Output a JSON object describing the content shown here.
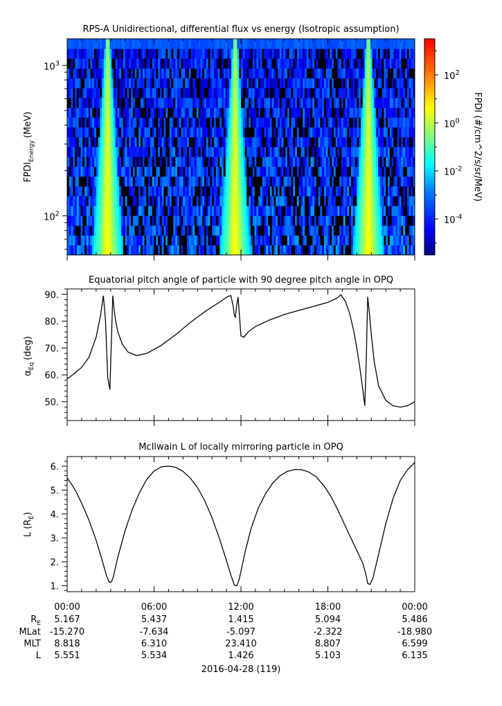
{
  "chart_data": [
    {
      "type": "heatmap",
      "title": "RPS-A Unidirectional, differential flux vs energy (Isotropic assumption)",
      "ylabel_main": "FPDI",
      "ylabel_sub": "Energy",
      "ylabel_unit": "(MeV)",
      "y_scale": "log",
      "ylim": [
        55,
        1500
      ],
      "yticks": [
        {
          "value": 100,
          "base": "10",
          "exp": "2"
        },
        {
          "value": 1000,
          "base": "10",
          "exp": "3"
        }
      ],
      "xlim_hours": [
        0,
        24
      ],
      "colorbar": {
        "label": "FPDI (#/cm^2/s/sr/MeV)",
        "scale": "log",
        "range_exp": [
          -5.5,
          3.5
        ],
        "ticks": [
          {
            "exp": "2",
            "value_exp": 2
          },
          {
            "exp": "0",
            "value_exp": 0
          },
          {
            "exp": "-2",
            "value_exp": -2
          },
          {
            "exp": "-4",
            "value_exp": -4
          }
        ],
        "colormap": [
          "#00007f",
          "#0000ff",
          "#007fff",
          "#00ffff",
          "#7fff7f",
          "#ffff00",
          "#ff7f00",
          "#ff0000"
        ]
      },
      "bright_bands_hours": [
        2.8,
        11.6,
        20.8
      ]
    },
    {
      "type": "line",
      "title": "Equatorial pitch angle of particle with 90 degree pitch angle in OPQ",
      "ylabel": "αEq (deg)",
      "ylim": [
        43,
        92
      ],
      "yticks": [
        50,
        60,
        70,
        80,
        90
      ],
      "x": [
        0,
        0.5,
        1,
        1.5,
        2,
        2.3,
        2.5,
        2.65,
        2.8,
        2.95,
        3.05,
        3.15,
        3.25,
        3.35,
        3.5,
        3.8,
        4.2,
        4.8,
        5.5,
        6.5,
        7.5,
        8.5,
        9.5,
        10.5,
        11.1,
        11.3,
        11.45,
        11.55,
        11.62,
        11.68,
        11.8,
        12.0,
        12.2,
        12.5,
        13.0,
        14.0,
        15.0,
        16.0,
        17.0,
        18.0,
        18.6,
        18.9,
        19.2,
        19.5,
        19.8,
        20.0,
        20.2,
        20.4,
        20.55,
        20.65,
        20.75,
        20.85,
        21.0,
        21.2,
        21.5,
        22.0,
        22.5,
        23.0,
        23.5,
        24.0
      ],
      "y": [
        58.5,
        60.5,
        62.8,
        66.5,
        74.0,
        82.0,
        89.5,
        80.0,
        59.0,
        54.5,
        72.0,
        89.5,
        84.0,
        80.0,
        76.0,
        71.5,
        68.5,
        67.2,
        68.0,
        71.0,
        75.0,
        79.5,
        83.5,
        87.0,
        89.2,
        89.5,
        86.0,
        82.0,
        81.5,
        85.0,
        89.0,
        74.5,
        74.0,
        76.0,
        78.0,
        80.5,
        82.5,
        84.0,
        85.5,
        87.0,
        88.5,
        89.8,
        87.5,
        83.0,
        76.0,
        70.0,
        63.0,
        55.0,
        48.5,
        65.0,
        89.0,
        84.0,
        75.0,
        65.0,
        56.0,
        50.5,
        48.5,
        48.0,
        48.5,
        50.0
      ]
    },
    {
      "type": "line",
      "title": "McIlwain L of locally mirroring particle in OPQ",
      "ylabel": "L (R",
      "ylabel_sub": "E",
      "ylabel_close": ")",
      "ylim": [
        0.75,
        6.4
      ],
      "yticks": [
        1,
        2,
        3,
        4,
        5,
        6
      ],
      "x": [
        0,
        0.3,
        0.6,
        1.0,
        1.5,
        2.0,
        2.4,
        2.7,
        2.9,
        3.05,
        3.2,
        3.5,
        4.0,
        4.5,
        5.0,
        5.5,
        6.0,
        6.5,
        7.0,
        7.5,
        8.0,
        8.5,
        9.0,
        9.5,
        10.0,
        10.5,
        11.0,
        11.3,
        11.55,
        11.7,
        11.85,
        12.0,
        12.3,
        12.7,
        13.2,
        13.7,
        14.2,
        14.7,
        15.2,
        15.7,
        16.2,
        16.7,
        17.2,
        17.7,
        18.2,
        18.7,
        19.2,
        19.7,
        20.1,
        20.4,
        20.6,
        20.75,
        20.9,
        21.1,
        21.5,
        22.0,
        22.5,
        23.0,
        23.5,
        24.0
      ],
      "y": [
        5.5,
        5.25,
        4.95,
        4.45,
        3.75,
        2.9,
        2.1,
        1.45,
        1.15,
        1.15,
        1.4,
        2.2,
        3.3,
        4.2,
        4.9,
        5.45,
        5.8,
        5.97,
        6.0,
        5.95,
        5.78,
        5.5,
        5.1,
        4.55,
        3.85,
        3.0,
        2.05,
        1.45,
        1.02,
        1.0,
        1.2,
        1.6,
        2.45,
        3.4,
        4.25,
        4.85,
        5.3,
        5.6,
        5.78,
        5.86,
        5.85,
        5.75,
        5.55,
        5.2,
        4.75,
        4.15,
        3.5,
        2.85,
        2.35,
        1.95,
        1.55,
        1.1,
        1.05,
        1.3,
        2.3,
        3.6,
        4.65,
        5.4,
        5.85,
        6.15
      ]
    }
  ],
  "xaxis": {
    "tick_hours": [
      0,
      6,
      12,
      18,
      24
    ],
    "minor_step_hours": 1,
    "tick_labels": [
      "00:00",
      "06:00",
      "12:00",
      "18:00",
      "00:00"
    ],
    "row_labels": [
      {
        "label": "R",
        "sub": "E",
        "values": [
          "5.167",
          "5.437",
          "1.415",
          "5.094",
          "5.486"
        ]
      },
      {
        "label": "MLat",
        "sub": "",
        "values": [
          "-15.270",
          "-7.634",
          "-5.097",
          "-2.322",
          "-18.980"
        ]
      },
      {
        "label": "MLT",
        "sub": "",
        "values": [
          "8.818",
          "6.310",
          "23.410",
          "8.807",
          "6.599"
        ]
      },
      {
        "label": "L",
        "sub": "",
        "values": [
          "5.551",
          "5.534",
          "1.426",
          "5.103",
          "6.135"
        ]
      }
    ],
    "date_label": "2016-04-28 (119)"
  }
}
